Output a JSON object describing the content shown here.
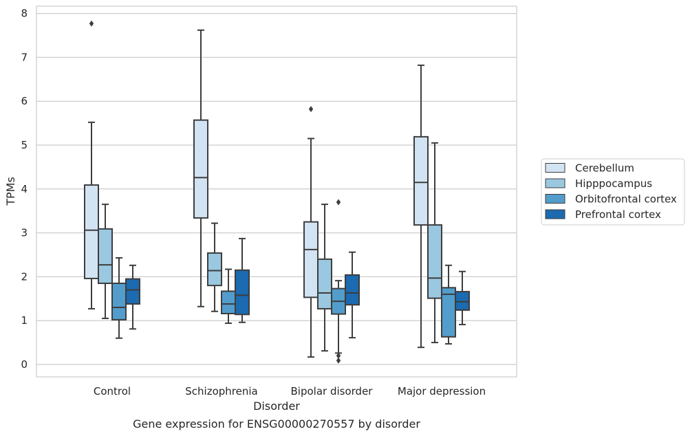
{
  "chart_data": {
    "type": "box",
    "xlabel": "Disorder",
    "ylabel": "TPMs",
    "caption": "Gene expression for ENSG00000270557 by disorder",
    "ylim": [
      -0.3,
      8.2
    ],
    "yticks": [
      0,
      1,
      2,
      3,
      4,
      5,
      6,
      7,
      8
    ],
    "grid": true,
    "legend_position": "right",
    "categories": [
      "Control",
      "Schizophrenia",
      "Bipolar disorder",
      "Major depression"
    ],
    "series": [
      {
        "name": "Cerebellum",
        "color": "#d2e3f3",
        "boxes": [
          {
            "whislo": 1.27,
            "q1": 1.96,
            "med": 3.06,
            "q3": 4.09,
            "whishi": 5.52,
            "fliers": [
              7.77
            ]
          },
          {
            "whislo": 1.32,
            "q1": 3.34,
            "med": 4.26,
            "q3": 5.57,
            "whishi": 7.62,
            "fliers": []
          },
          {
            "whislo": 0.17,
            "q1": 1.53,
            "med": 2.62,
            "q3": 3.25,
            "whishi": 5.15,
            "fliers": [
              5.82
            ]
          },
          {
            "whislo": 0.39,
            "q1": 3.18,
            "med": 4.15,
            "q3": 5.19,
            "whishi": 6.82,
            "fliers": []
          }
        ]
      },
      {
        "name": "Hipppocampus",
        "color": "#9ac8e0",
        "boxes": [
          {
            "whislo": 1.05,
            "q1": 1.85,
            "med": 2.27,
            "q3": 3.09,
            "whishi": 3.65,
            "fliers": []
          },
          {
            "whislo": 1.21,
            "q1": 1.8,
            "med": 2.14,
            "q3": 2.54,
            "whishi": 3.22,
            "fliers": []
          },
          {
            "whislo": 0.31,
            "q1": 1.27,
            "med": 1.63,
            "q3": 2.4,
            "whishi": 3.65,
            "fliers": []
          },
          {
            "whislo": 0.5,
            "q1": 1.51,
            "med": 1.97,
            "q3": 3.18,
            "whishi": 5.05,
            "fliers": []
          }
        ]
      },
      {
        "name": "Orbitofrontal cortex",
        "color": "#529dcc",
        "boxes": [
          {
            "whislo": 0.6,
            "q1": 1.02,
            "med": 1.3,
            "q3": 1.85,
            "whishi": 2.43,
            "fliers": []
          },
          {
            "whislo": 0.94,
            "q1": 1.16,
            "med": 1.38,
            "q3": 1.67,
            "whishi": 2.17,
            "fliers": []
          },
          {
            "whislo": 0.26,
            "q1": 1.15,
            "med": 1.44,
            "q3": 1.73,
            "whishi": 1.91,
            "fliers": [
              3.7,
              0.2,
              0.09
            ]
          },
          {
            "whislo": 0.47,
            "q1": 0.63,
            "med": 1.6,
            "q3": 1.75,
            "whishi": 2.26,
            "fliers": []
          }
        ]
      },
      {
        "name": "Prefrontal cortex",
        "color": "#1c6aaf",
        "boxes": [
          {
            "whislo": 0.81,
            "q1": 1.38,
            "med": 1.7,
            "q3": 1.95,
            "whishi": 2.26,
            "fliers": []
          },
          {
            "whislo": 0.96,
            "q1": 1.14,
            "med": 1.58,
            "q3": 2.15,
            "whishi": 2.87,
            "fliers": []
          },
          {
            "whislo": 0.61,
            "q1": 1.36,
            "med": 1.63,
            "q3": 2.04,
            "whishi": 2.56,
            "fliers": []
          },
          {
            "whislo": 0.91,
            "q1": 1.24,
            "med": 1.43,
            "q3": 1.66,
            "whishi": 2.12,
            "fliers": []
          }
        ]
      }
    ]
  }
}
